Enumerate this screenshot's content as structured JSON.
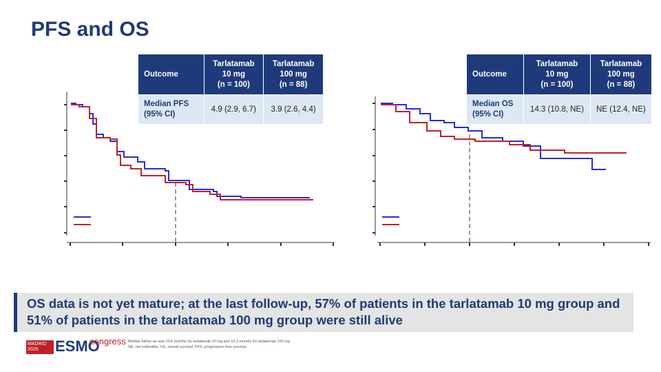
{
  "title": "PFS and OS",
  "tables": [
    {
      "header": [
        [
          "Outcome"
        ],
        [
          "Tarlatamab",
          "10 mg",
          "(n = 100)"
        ],
        [
          "Tarlatamab",
          "100 mg",
          "(n = 88)"
        ]
      ],
      "row": [
        [
          "Median PFS",
          "(95% CI)"
        ],
        [
          "4.9 (2.9, 6.7)"
        ],
        [
          "3.9 (2.6, 4.4)"
        ]
      ]
    },
    {
      "header": [
        [
          "Outcome"
        ],
        [
          "Tarlatamab",
          "10 mg",
          "(n = 100)"
        ],
        [
          "Tarlatamab",
          "100 mg",
          "(n = 88)"
        ]
      ],
      "row": [
        [
          "Median OS",
          "(95% CI)"
        ],
        [
          "14.3 (10.8, NE)"
        ],
        [
          "NE (12.4, NE)"
        ]
      ]
    }
  ],
  "callout": "OS data is not yet mature; at the last follow-up, 57% of patients in the tarlatamab 10 mg group and 51% of patients in the tarlatamab 100 mg group were still alive",
  "footnotes": [
    "Median follow-up was 10.6 months for tarlatamab 10 mg and 10.3 months for tarlatamab 100 mg.",
    "NE, not estimable; OS, overall survival; PFS, progression-free survival."
  ],
  "logo": {
    "city": "MADRID",
    "year": "2025",
    "brand": "ESMO",
    "event": "congress"
  }
}
